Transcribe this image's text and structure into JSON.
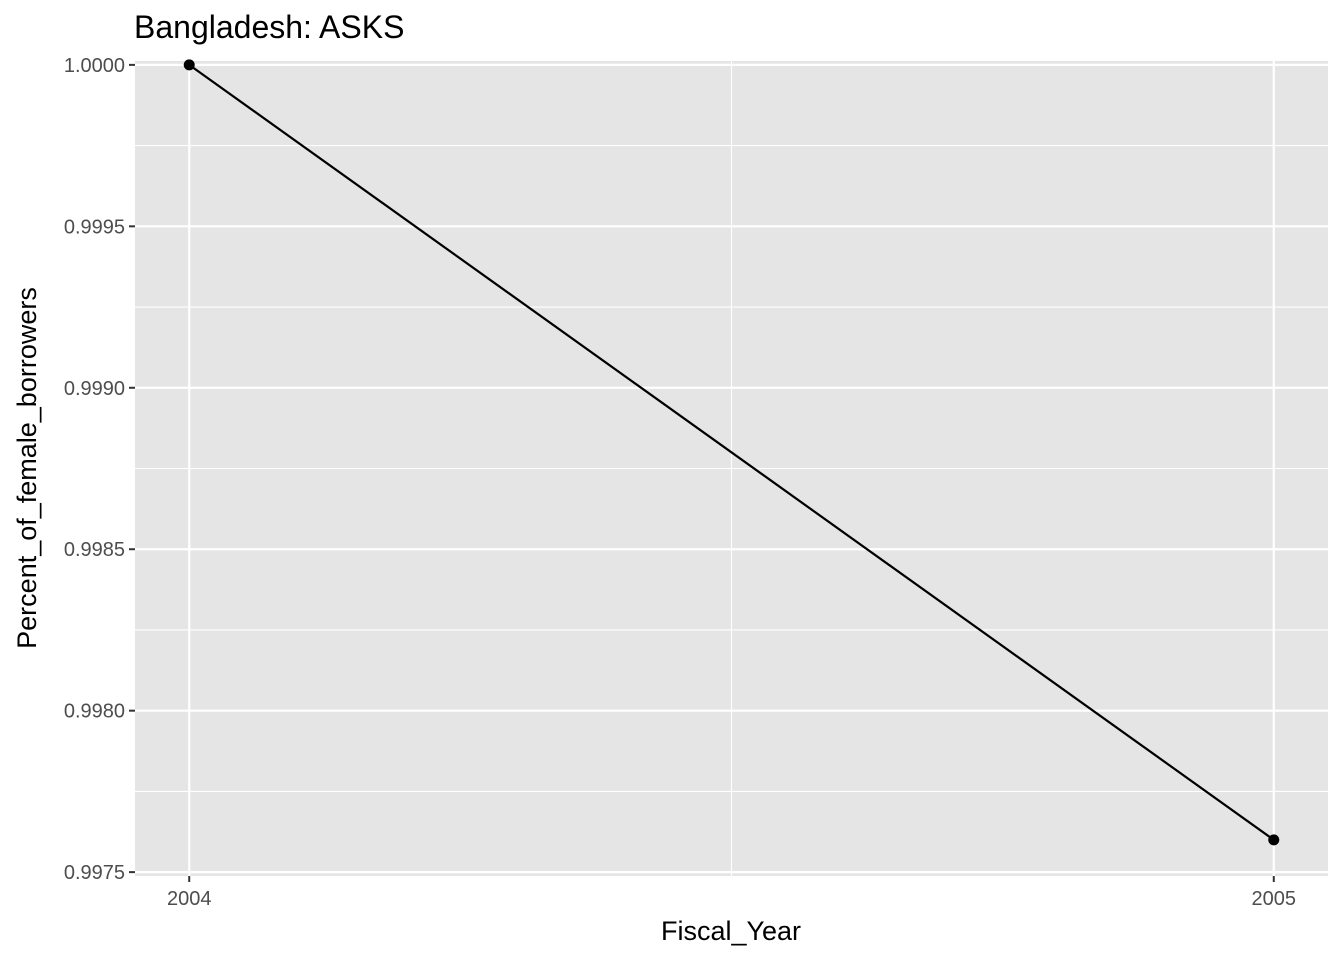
{
  "chart_data": {
    "type": "line",
    "title": "Bangladesh:  ASKS",
    "xlabel": "Fiscal_Year",
    "ylabel": "Percent_of_female_borrowers",
    "x": [
      2004,
      2005
    ],
    "x_ticks": [
      "2004",
      "2005"
    ],
    "xlim": [
      2003.95,
      2005.05
    ],
    "series": [
      {
        "values": [
          1.0,
          0.9976
        ],
        "color": "#000000"
      }
    ],
    "y_ticks": [
      1.0,
      0.9995,
      0.999,
      0.9985,
      0.998,
      0.9975
    ],
    "y_tick_labels": [
      "1.0000",
      "0.9995",
      "0.9990",
      "0.9985",
      "0.9980",
      "0.9975"
    ],
    "ylim": [
      0.997488,
      1.000012
    ],
    "grid": true,
    "panel_color": "#e5e5e5",
    "grid_color": "#ffffff",
    "legend": "none"
  }
}
